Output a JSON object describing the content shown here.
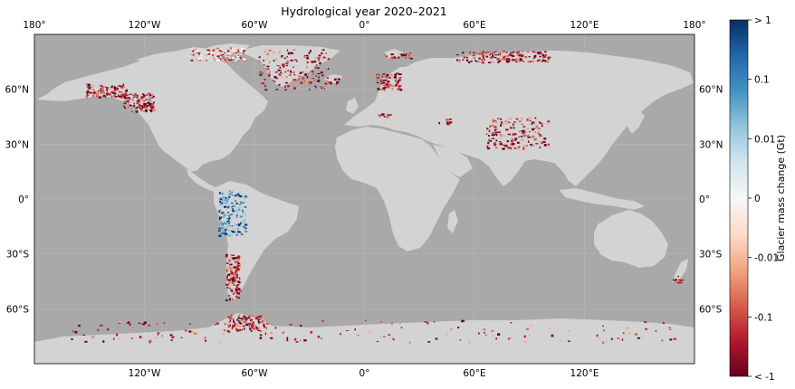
{
  "title": "Hydrological year 2020–2021",
  "map": {
    "ocean_color": "#a9a9a9",
    "land_color": "#d3d3d3",
    "grid_color": "#b8b8b8",
    "lon_ticks": [
      {
        "value": -180,
        "label": "180°"
      },
      {
        "value": -120,
        "label": "120°W"
      },
      {
        "value": -60,
        "label": "60°W"
      },
      {
        "value": 0,
        "label": "0°"
      },
      {
        "value": 60,
        "label": "60°E"
      },
      {
        "value": 120,
        "label": "120°E"
      },
      {
        "value": 180,
        "label": "180°"
      }
    ],
    "lat_ticks": [
      {
        "value": 60,
        "label": "60°N"
      },
      {
        "value": 30,
        "label": "30°N"
      },
      {
        "value": 0,
        "label": "0°"
      },
      {
        "value": -30,
        "label": "30°S"
      },
      {
        "value": -60,
        "label": "60°S"
      }
    ],
    "glacier_regions": [
      {
        "region": "Alaska",
        "lon": [
          -152,
          -130
        ],
        "lat": [
          56,
          63
        ],
        "trend": "loss"
      },
      {
        "region": "Western Canada",
        "lon": [
          -132,
          -115
        ],
        "lat": [
          48,
          58
        ],
        "trend": "loss"
      },
      {
        "region": "Arctic Canada",
        "lon": [
          -95,
          -65
        ],
        "lat": [
          76,
          83
        ],
        "trend": "mixed"
      },
      {
        "region": "Greenland",
        "lon": [
          -58,
          -20
        ],
        "lat": [
          60,
          82
        ],
        "trend": "loss"
      },
      {
        "region": "Iceland",
        "lon": [
          -22,
          -14
        ],
        "lat": [
          63,
          66
        ],
        "trend": "loss"
      },
      {
        "region": "Svalbard",
        "lon": [
          10,
          25
        ],
        "lat": [
          77,
          80
        ],
        "trend": "loss"
      },
      {
        "region": "Scandinavia",
        "lon": [
          6,
          20
        ],
        "lat": [
          60,
          69
        ],
        "trend": "loss"
      },
      {
        "region": "Russian Arctic",
        "lon": [
          50,
          100
        ],
        "lat": [
          75,
          81
        ],
        "trend": "loss"
      },
      {
        "region": "Alps",
        "lon": [
          6,
          14
        ],
        "lat": [
          45,
          47
        ],
        "trend": "loss"
      },
      {
        "region": "Caucasus",
        "lon": [
          40,
          48
        ],
        "lat": [
          41,
          44
        ],
        "trend": "loss"
      },
      {
        "region": "Central Asia",
        "lon": [
          66,
          100
        ],
        "lat": [
          28,
          45
        ],
        "trend": "loss"
      },
      {
        "region": "Low latitudes",
        "lon": [
          -80,
          -65
        ],
        "lat": [
          -20,
          5
        ],
        "trend": "gain"
      },
      {
        "region": "Southern Andes",
        "lon": [
          -76,
          -68
        ],
        "lat": [
          -55,
          -30
        ],
        "trend": "loss"
      },
      {
        "region": "New Zealand",
        "lon": [
          168,
          173
        ],
        "lat": [
          -46,
          -42
        ],
        "trend": "loss"
      },
      {
        "region": "Antarctic Peninsula",
        "lon": [
          -75,
          -55
        ],
        "lat": [
          -72,
          -63
        ],
        "trend": "loss"
      },
      {
        "region": "Antarctic coast",
        "lon": [
          -160,
          170
        ],
        "lat": [
          -78,
          -66
        ],
        "trend": "loss"
      }
    ]
  },
  "colorbar": {
    "label": "Glacier mass change (Gt)",
    "ticks": [
      "> 1",
      "0.1",
      "0.01",
      "0",
      "-0.01",
      "-0.1",
      "< -1"
    ],
    "stops": [
      "#053061",
      "#2166ac",
      "#4393c3",
      "#92c5de",
      "#d1e5f0",
      "#f7f7f7",
      "#fddbc7",
      "#f4a582",
      "#d6604d",
      "#b2182b",
      "#67001f"
    ]
  }
}
